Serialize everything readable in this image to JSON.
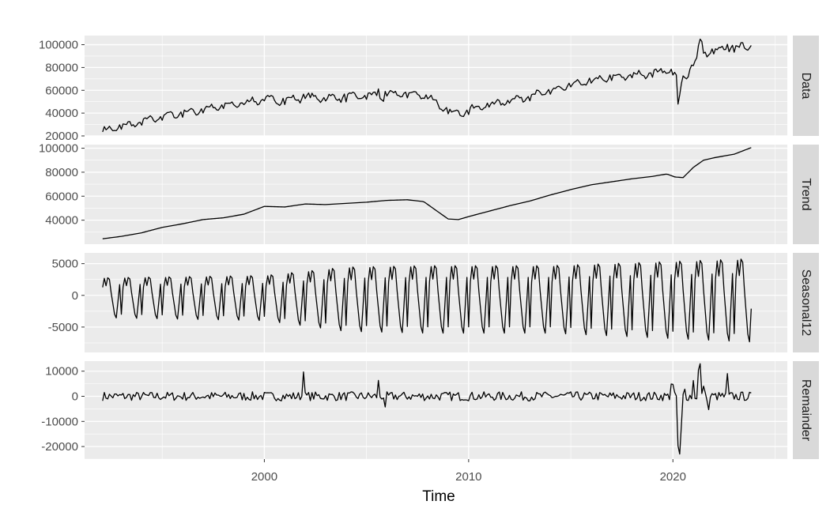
{
  "chart_data": {
    "type": "line",
    "xlabel": "Time",
    "x_ticks": [
      2000,
      2010,
      2020
    ],
    "x_range": [
      1991.2,
      2025.6
    ],
    "time": {
      "start": 1992.083,
      "end": 2023.833,
      "frequency": 12
    },
    "colors": {
      "panel_bg": "#ebebeb",
      "grid": "#ffffff",
      "strip_bg": "#d9d9d9",
      "line": "#000000"
    },
    "panels": [
      {
        "name": "Data",
        "y_ticks": [
          20000,
          40000,
          60000,
          80000,
          100000
        ],
        "y_tick_labels": [
          "20000",
          "40000",
          "60000",
          "80000",
          "100000"
        ],
        "ylim": [
          20000,
          108000
        ],
        "anchors": [
          [
            1992.083,
            24000
          ],
          [
            1993.0,
            28000
          ],
          [
            1994.0,
            32000
          ],
          [
            1995.0,
            37000
          ],
          [
            1996.0,
            40000
          ],
          [
            1997.0,
            43000
          ],
          [
            1998.0,
            46000
          ],
          [
            1999.0,
            49000
          ],
          [
            2000.0,
            52000
          ],
          [
            2001.0,
            51000
          ],
          [
            2002.0,
            54000
          ],
          [
            2003.0,
            53000
          ],
          [
            2004.0,
            54000
          ],
          [
            2005.0,
            55000
          ],
          [
            2006.0,
            56000
          ],
          [
            2007.0,
            57000
          ],
          [
            2008.0,
            55000
          ],
          [
            2008.8,
            43000
          ],
          [
            2009.3,
            39000
          ],
          [
            2010.0,
            43000
          ],
          [
            2011.0,
            47000
          ],
          [
            2012.0,
            51000
          ],
          [
            2013.0,
            55000
          ],
          [
            2014.0,
            59000
          ],
          [
            2015.0,
            64000
          ],
          [
            2016.0,
            68000
          ],
          [
            2017.0,
            71000
          ],
          [
            2018.0,
            73000
          ],
          [
            2019.0,
            75000
          ],
          [
            2019.9,
            78000
          ],
          [
            2020.2,
            70000
          ],
          [
            2020.6,
            72000
          ],
          [
            2021.0,
            84000
          ],
          [
            2021.5,
            93000
          ],
          [
            2022.0,
            94000
          ],
          [
            2023.0,
            97000
          ],
          [
            2023.833,
            99000
          ]
        ],
        "seasonal_amp": 0.75,
        "noise_amp": 1.1,
        "spikes": [
          [
            2001.9,
            3000
          ],
          [
            2005.6,
            6000
          ],
          [
            2005.8,
            -4000
          ],
          [
            2020.25,
            -24000
          ],
          [
            2020.33,
            -18000
          ],
          [
            2020.42,
            -8000
          ],
          [
            2021.25,
            9000
          ],
          [
            2021.33,
            12000
          ],
          [
            2021.42,
            8000
          ],
          [
            2022.67,
            6000
          ]
        ]
      },
      {
        "name": "Trend",
        "y_ticks": [
          40000,
          60000,
          80000,
          100000
        ],
        "y_tick_labels": [
          "40000",
          "60000",
          "80000",
          "100000"
        ],
        "ylim": [
          20000,
          103000
        ],
        "anchors": [
          [
            1992.083,
            24500
          ],
          [
            1993.0,
            26500
          ],
          [
            1994.0,
            29500
          ],
          [
            1995.0,
            34000
          ],
          [
            1996.0,
            37000
          ],
          [
            1997.0,
            40500
          ],
          [
            1998.0,
            42000
          ],
          [
            1999.0,
            45000
          ],
          [
            2000.0,
            51500
          ],
          [
            2001.0,
            51000
          ],
          [
            2002.0,
            53500
          ],
          [
            2003.0,
            53000
          ],
          [
            2004.0,
            54000
          ],
          [
            2005.0,
            55000
          ],
          [
            2006.0,
            56500
          ],
          [
            2007.0,
            57000
          ],
          [
            2007.8,
            55500
          ],
          [
            2008.5,
            47000
          ],
          [
            2009.0,
            41000
          ],
          [
            2009.5,
            40500
          ],
          [
            2010.0,
            43000
          ],
          [
            2011.0,
            47500
          ],
          [
            2012.0,
            52000
          ],
          [
            2013.0,
            56000
          ],
          [
            2014.0,
            61000
          ],
          [
            2015.0,
            65500
          ],
          [
            2016.0,
            69500
          ],
          [
            2017.0,
            72000
          ],
          [
            2018.0,
            74500
          ],
          [
            2019.0,
            76500
          ],
          [
            2019.7,
            78500
          ],
          [
            2020.1,
            76000
          ],
          [
            2020.5,
            75500
          ],
          [
            2021.0,
            84000
          ],
          [
            2021.5,
            90000
          ],
          [
            2022.0,
            92000
          ],
          [
            2023.0,
            95000
          ],
          [
            2023.833,
            100500
          ]
        ],
        "seasonal_amp": 0,
        "noise_amp": 0,
        "spikes": []
      },
      {
        "name": "Seasonal12",
        "y_ticks": [
          -5000,
          0,
          5000
        ],
        "y_tick_labels": [
          "-5000",
          "0",
          "5000"
        ],
        "ylim": [
          -9000,
          6700
        ],
        "anchors": [
          [
            1992.083,
            0
          ],
          [
            2023.833,
            0
          ]
        ],
        "seasonal_amp": 1,
        "seasonal_amp_growth": [
          [
            1992.0,
            0.62
          ],
          [
            2000.0,
            0.7
          ],
          [
            2004.0,
            1.0
          ],
          [
            2008.0,
            1.05
          ],
          [
            2014.0,
            1.05
          ],
          [
            2024.0,
            1.3
          ]
        ],
        "noise_amp": 0,
        "spikes": []
      },
      {
        "name": "Remainder",
        "y_ticks": [
          -20000,
          -10000,
          0,
          10000
        ],
        "y_tick_labels": [
          "-20000",
          "-10000",
          "0",
          "10000"
        ],
        "ylim": [
          -25000,
          14000
        ],
        "anchors": [
          [
            1992.083,
            0
          ],
          [
            2023.833,
            0
          ]
        ],
        "seasonal_amp": 0,
        "noise_amp": 1.2,
        "spikes": [
          [
            2001.9,
            11500
          ],
          [
            2005.6,
            5500
          ],
          [
            2005.9,
            -6000
          ],
          [
            2019.9,
            5500
          ],
          [
            2020.0,
            4000
          ],
          [
            2020.25,
            -20000
          ],
          [
            2020.33,
            -24000
          ],
          [
            2020.42,
            -12000
          ],
          [
            2020.58,
            2500
          ],
          [
            2021.0,
            6000
          ],
          [
            2021.25,
            10000
          ],
          [
            2021.33,
            12500
          ],
          [
            2021.5,
            5000
          ],
          [
            2021.75,
            -6000
          ],
          [
            2022.67,
            8000
          ]
        ]
      }
    ],
    "seasonal_pattern": [
      -3500,
      1500,
      3200,
      1800,
      3300,
      3000,
      500,
      -1500,
      -3500,
      -4200,
      -1200,
      2000
    ]
  }
}
